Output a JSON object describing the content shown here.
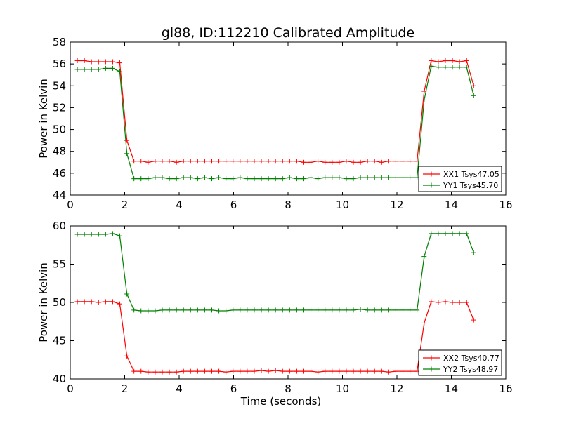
{
  "title": "gl88, ID:112210 Calibrated Amplitude",
  "colors": {
    "red": "#ff0000",
    "green": "#008000"
  },
  "chart_data": [
    {
      "type": "line",
      "ylabel": "Power in Kelvin",
      "xlabel": "",
      "xlim": [
        0,
        16
      ],
      "ylim": [
        44,
        58
      ],
      "xticks": [
        0,
        2,
        4,
        6,
        8,
        10,
        12,
        14,
        16
      ],
      "yticks": [
        44,
        46,
        48,
        50,
        52,
        54,
        56,
        58
      ],
      "legend_position": "lower-right",
      "x": [
        0.26,
        0.52,
        0.78,
        1.04,
        1.3,
        1.56,
        1.82,
        2.08,
        2.34,
        2.6,
        2.86,
        3.12,
        3.38,
        3.64,
        3.9,
        4.16,
        4.42,
        4.68,
        4.94,
        5.2,
        5.46,
        5.72,
        5.98,
        6.24,
        6.5,
        6.76,
        7.02,
        7.28,
        7.54,
        7.8,
        8.06,
        8.32,
        8.58,
        8.84,
        9.1,
        9.36,
        9.62,
        9.88,
        10.14,
        10.4,
        10.66,
        10.92,
        11.18,
        11.44,
        11.7,
        11.96,
        12.22,
        12.48,
        12.74,
        13.0,
        13.26,
        13.52,
        13.78,
        14.04,
        14.3,
        14.56,
        14.82
      ],
      "series": [
        {
          "name": "XX1 Tsys47.05",
          "color": "#ff0000",
          "values": [
            56.3,
            56.3,
            56.2,
            56.2,
            56.2,
            56.2,
            56.1,
            49.0,
            47.1,
            47.1,
            47.0,
            47.1,
            47.1,
            47.1,
            47.0,
            47.1,
            47.1,
            47.1,
            47.1,
            47.1,
            47.1,
            47.1,
            47.1,
            47.1,
            47.1,
            47.1,
            47.1,
            47.1,
            47.1,
            47.1,
            47.1,
            47.1,
            47.0,
            47.0,
            47.1,
            47.0,
            47.0,
            47.0,
            47.1,
            47.0,
            47.0,
            47.1,
            47.1,
            47.0,
            47.1,
            47.1,
            47.1,
            47.1,
            47.1,
            53.5,
            56.3,
            56.2,
            56.3,
            56.3,
            56.2,
            56.3,
            54.0
          ]
        },
        {
          "name": "YY1 Tsys45.70",
          "color": "#008000",
          "values": [
            55.5,
            55.5,
            55.5,
            55.5,
            55.6,
            55.6,
            55.3,
            47.8,
            45.5,
            45.5,
            45.5,
            45.6,
            45.6,
            45.5,
            45.5,
            45.6,
            45.6,
            45.5,
            45.6,
            45.5,
            45.6,
            45.5,
            45.5,
            45.6,
            45.5,
            45.5,
            45.5,
            45.5,
            45.5,
            45.5,
            45.6,
            45.5,
            45.5,
            45.6,
            45.5,
            45.6,
            45.6,
            45.6,
            45.5,
            45.5,
            45.6,
            45.6,
            45.6,
            45.6,
            45.6,
            45.6,
            45.6,
            45.6,
            45.6,
            52.7,
            55.8,
            55.7,
            55.7,
            55.7,
            55.7,
            55.7,
            53.1
          ]
        }
      ]
    },
    {
      "type": "line",
      "ylabel": "Power in Kelvin",
      "xlabel": "Time (seconds)",
      "xlim": [
        0,
        16
      ],
      "ylim": [
        40,
        60
      ],
      "xticks": [
        0,
        2,
        4,
        6,
        8,
        10,
        12,
        14,
        16
      ],
      "yticks": [
        40,
        45,
        50,
        55,
        60
      ],
      "legend_position": "lower-right",
      "x": [
        0.26,
        0.52,
        0.78,
        1.04,
        1.3,
        1.56,
        1.82,
        2.08,
        2.34,
        2.6,
        2.86,
        3.12,
        3.38,
        3.64,
        3.9,
        4.16,
        4.42,
        4.68,
        4.94,
        5.2,
        5.46,
        5.72,
        5.98,
        6.24,
        6.5,
        6.76,
        7.02,
        7.28,
        7.54,
        7.8,
        8.06,
        8.32,
        8.58,
        8.84,
        9.1,
        9.36,
        9.62,
        9.88,
        10.14,
        10.4,
        10.66,
        10.92,
        11.18,
        11.44,
        11.7,
        11.96,
        12.22,
        12.48,
        12.74,
        13.0,
        13.26,
        13.52,
        13.78,
        14.04,
        14.3,
        14.56,
        14.82
      ],
      "series": [
        {
          "name": "XX2 Tsys40.77",
          "color": "#ff0000",
          "values": [
            50.1,
            50.1,
            50.1,
            50.0,
            50.1,
            50.1,
            49.8,
            43.0,
            41.0,
            41.0,
            40.9,
            40.9,
            40.9,
            40.9,
            40.9,
            41.0,
            41.0,
            41.0,
            41.0,
            41.0,
            41.0,
            40.9,
            41.0,
            41.0,
            41.0,
            41.0,
            41.1,
            41.0,
            41.1,
            41.0,
            41.0,
            41.0,
            41.0,
            41.0,
            40.9,
            41.0,
            41.0,
            41.0,
            41.0,
            41.0,
            41.0,
            41.0,
            41.0,
            41.0,
            40.9,
            41.0,
            41.0,
            41.0,
            41.0,
            47.3,
            50.1,
            50.0,
            50.1,
            50.0,
            50.0,
            50.0,
            47.7
          ]
        },
        {
          "name": "YY2 Tsys48.97",
          "color": "#008000",
          "values": [
            58.9,
            58.9,
            58.9,
            58.9,
            58.9,
            59.0,
            58.7,
            51.1,
            49.0,
            48.9,
            48.9,
            48.9,
            49.0,
            49.0,
            49.0,
            49.0,
            49.0,
            49.0,
            49.0,
            49.0,
            48.9,
            48.9,
            49.0,
            49.0,
            49.0,
            49.0,
            49.0,
            49.0,
            49.0,
            49.0,
            49.0,
            49.0,
            49.0,
            49.0,
            49.0,
            49.0,
            49.0,
            49.0,
            49.0,
            49.0,
            49.1,
            49.0,
            49.0,
            49.0,
            49.0,
            49.0,
            49.0,
            49.0,
            49.0,
            56.0,
            59.0,
            59.0,
            59.0,
            59.0,
            59.0,
            59.0,
            56.5
          ]
        }
      ]
    }
  ]
}
